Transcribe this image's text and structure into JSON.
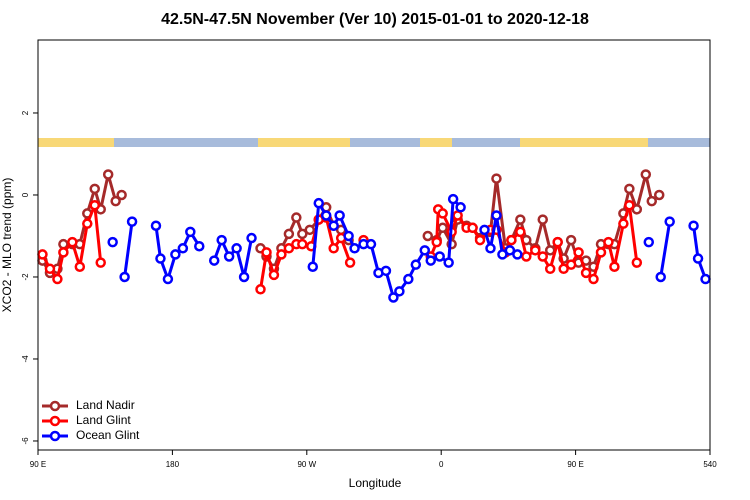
{
  "chart_data": {
    "type": "line",
    "title": "42.5N-47.5N November (Ver 10)   2015-01-01 to 2020-12-18",
    "x_label": "Longitude",
    "y_label": "XCO2 - MLO trend (ppm)",
    "xlim": [
      90,
      540
    ],
    "ylim": [
      -6.22,
      3.78
    ],
    "xticks": [
      {
        "value": 90,
        "label": "90 E"
      },
      180,
      {
        "value": 270,
        "label": "90 W"
      },
      {
        "value": 360,
        "label": "0"
      },
      {
        "value": 450,
        "label": "90 E"
      },
      540
    ],
    "yticks": [
      -6,
      -4,
      -2,
      0,
      2
    ],
    "legend": "bottomleft",
    "series": [
      {
        "name": "Land Nadir",
        "color": "#a52a2a",
        "x": [
          93,
          98,
          103,
          107,
          113,
          118,
          123,
          128,
          132,
          137,
          142,
          146,
          null,
          239,
          243,
          248,
          253,
          258,
          263,
          267,
          272,
          278,
          283,
          288,
          293,
          298,
          null,
          351,
          357,
          361,
          367,
          371,
          377,
          381,
          386,
          393,
          397,
          403,
          407,
          413,
          417,
          423,
          428,
          433,
          438,
          442,
          447,
          452,
          457,
          462,
          467,
          472,
          476,
          482,
          486,
          491,
          497,
          501,
          506
        ],
        "values": [
          -1.6,
          -1.9,
          -1.8,
          -1.2,
          -1.2,
          -1.2,
          -0.45,
          0.15,
          -0.35,
          0.5,
          -0.15,
          0,
          null,
          -1.3,
          -1.5,
          -1.8,
          -1.3,
          -0.95,
          -0.55,
          -0.95,
          -0.85,
          -0.6,
          -0.3,
          -0.75,
          -0.85,
          -1.1,
          null,
          -1.0,
          -1.1,
          -0.8,
          -1.2,
          -0.6,
          -0.75,
          -0.8,
          -1.05,
          -0.9,
          0.4,
          -1.3,
          -1.1,
          -0.6,
          -1.1,
          -1.3,
          -0.6,
          -1.35,
          -1.15,
          -1.55,
          -1.1,
          -1.65,
          -1.6,
          -1.75,
          -1.2,
          -1.2,
          -1.2,
          -0.45,
          0.15,
          -0.35,
          0.5,
          -0.15,
          0
        ]
      },
      {
        "name": "Land Glint",
        "color": "#ff0000",
        "x": [
          93,
          98,
          103,
          107,
          113,
          118,
          123,
          128,
          132,
          null,
          239,
          243,
          248,
          253,
          258,
          263,
          267,
          273,
          278,
          283,
          288,
          293,
          299,
          null,
          308,
          null,
          353,
          357,
          358,
          361,
          367,
          371,
          377,
          381,
          386,
          393,
          397,
          403,
          407,
          413,
          417,
          423,
          428,
          433,
          438,
          442,
          447,
          452,
          457,
          462,
          467,
          472,
          476,
          482,
          486,
          491
        ],
        "values": [
          -1.45,
          -1.8,
          -2.05,
          -1.4,
          -1.15,
          -1.75,
          -0.7,
          -0.25,
          -1.65,
          null,
          -2.3,
          -1.4,
          -1.95,
          -1.45,
          -1.3,
          -1.2,
          -1.2,
          -1.25,
          -0.6,
          -0.55,
          -1.3,
          -1.05,
          -1.65,
          null,
          -1.1,
          null,
          -1.5,
          -1.15,
          -0.35,
          -0.45,
          -0.9,
          -0.5,
          -0.8,
          -0.8,
          -1.1,
          -0.85,
          -0.85,
          -1.4,
          -1.1,
          -0.9,
          -1.5,
          -1.35,
          -1.5,
          -1.8,
          -1.15,
          -1.8,
          -1.7,
          -1.4,
          -1.9,
          -2.05,
          -1.4,
          -1.15,
          -1.75,
          -0.7,
          -0.25,
          -1.65
        ]
      },
      {
        "name": "Ocean Glint",
        "color": "#0000ff",
        "x": [
          140,
          null,
          148,
          153,
          null,
          169,
          172,
          177,
          182,
          187,
          192,
          198,
          null,
          208,
          213,
          218,
          223,
          228,
          233,
          null,
          274,
          278,
          283,
          288,
          292,
          298,
          302,
          308,
          313,
          318,
          323,
          328,
          332,
          338,
          343,
          349,
          353,
          359,
          365,
          368,
          373,
          null,
          389,
          393,
          397,
          401,
          406,
          411,
          null,
          499,
          null,
          507,
          513,
          null,
          529,
          532,
          537
        ],
        "values": [
          -1.15,
          null,
          -2.0,
          -0.65,
          null,
          -0.75,
          -1.55,
          -2.05,
          -1.45,
          -1.3,
          -0.9,
          -1.25,
          null,
          -1.6,
          -1.1,
          -1.5,
          -1.3,
          -2.0,
          -1.05,
          null,
          -1.75,
          -0.2,
          -0.5,
          -0.75,
          -0.5,
          -1.0,
          -1.3,
          -1.2,
          -1.2,
          -1.9,
          -1.85,
          -2.5,
          -2.35,
          -2.05,
          -1.7,
          -1.35,
          -1.6,
          -1.5,
          -1.65,
          -0.1,
          -0.3,
          null,
          -0.85,
          -1.3,
          -0.5,
          -1.45,
          -1.35,
          -1.45,
          null,
          -1.15,
          null,
          -2.0,
          -0.65,
          null,
          -0.75,
          -1.55,
          -2.05
        ]
      }
    ]
  }
}
